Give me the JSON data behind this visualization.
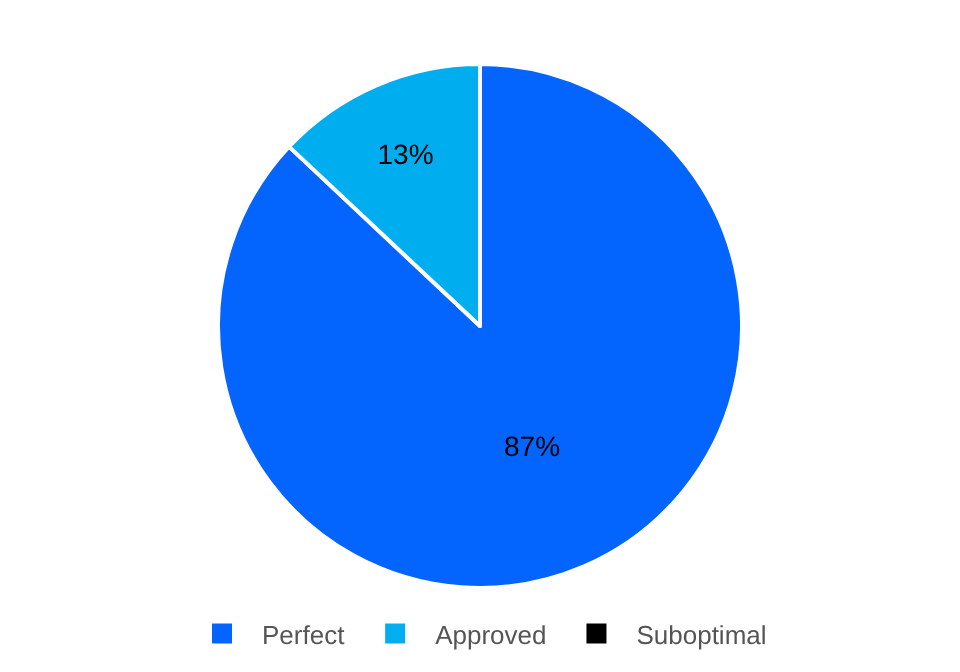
{
  "chart_data": {
    "type": "pie",
    "categories": [
      "Perfect",
      "Approved",
      "Suboptimal"
    ],
    "values": [
      87,
      13,
      0
    ],
    "colors": [
      "#0364fe",
      "#00aeef",
      "#000000"
    ],
    "value_labels": [
      "87%",
      "13%",
      null
    ],
    "legend": "bottom"
  }
}
